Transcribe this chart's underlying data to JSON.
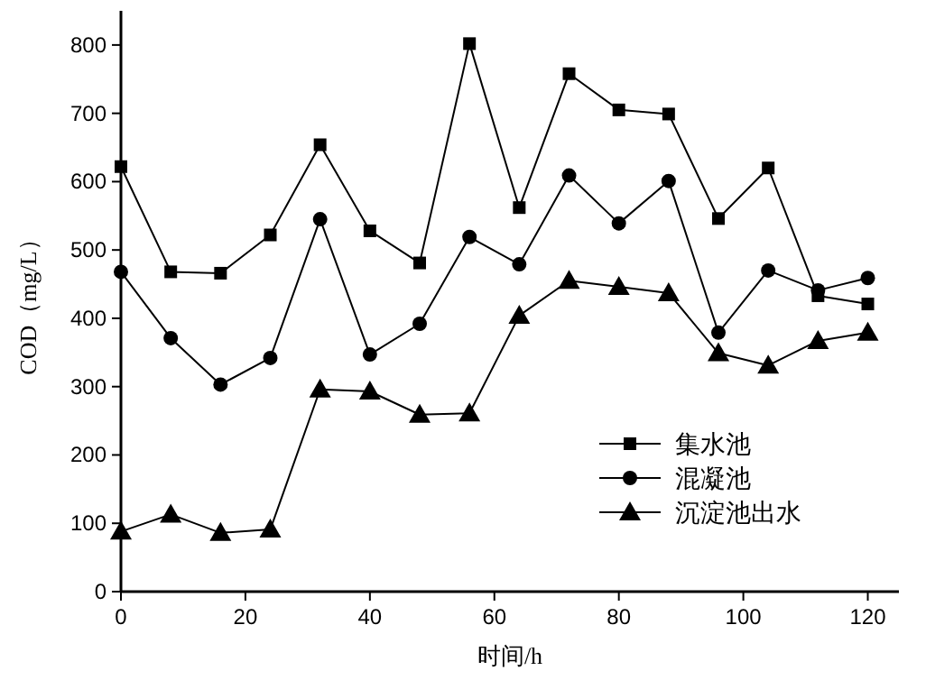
{
  "chart_data": {
    "type": "line",
    "xlabel": "时间/h",
    "ylabel": "COD（mg/L）",
    "x": [
      0,
      8,
      16,
      24,
      32,
      40,
      48,
      56,
      64,
      72,
      80,
      88,
      96,
      104,
      112,
      120
    ],
    "series": [
      {
        "name": "集水池",
        "color": "#000000",
        "marker": "square",
        "values": [
          622,
          468,
          466,
          522,
          654,
          528,
          481,
          802,
          562,
          758,
          705,
          699,
          546,
          620,
          433,
          421
        ]
      },
      {
        "name": "混凝池",
        "color": "#000000",
        "marker": "circle",
        "values": [
          468,
          371,
          303,
          342,
          545,
          347,
          392,
          519,
          479,
          609,
          539,
          601,
          379,
          470,
          441,
          459
        ]
      },
      {
        "name": "沉淀池出水",
        "color": "#000000",
        "marker": "triangle",
        "values": [
          88,
          113,
          86,
          91,
          296,
          293,
          259,
          261,
          404,
          455,
          446,
          437,
          349,
          331,
          367,
          379
        ]
      }
    ],
    "xlim": [
      0,
      125
    ],
    "ylim": [
      0,
      850
    ],
    "xticks": [
      0,
      20,
      40,
      60,
      80,
      100,
      120
    ],
    "yticks": [
      0,
      100,
      200,
      300,
      400,
      500,
      600,
      700,
      800
    ],
    "grid": false,
    "legend": "bottom right",
    "line_style": "solid"
  }
}
